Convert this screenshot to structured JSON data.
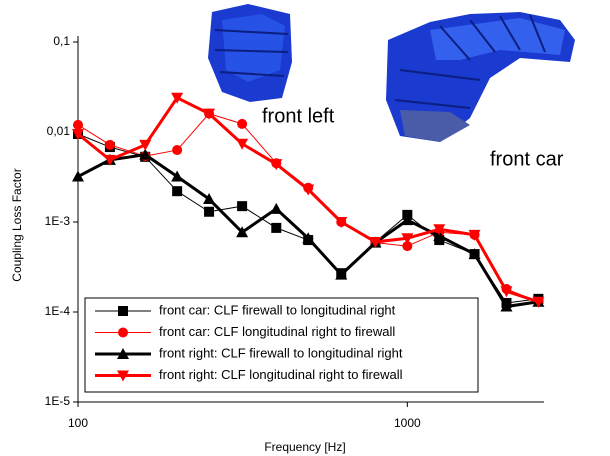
{
  "chart_data": {
    "type": "line",
    "xlabel": "Frequency [Hz]",
    "ylabel": "Coupling Loss Factor",
    "xlog": true,
    "ylog": true,
    "x": [
      100,
      125,
      160,
      200,
      250,
      315,
      400,
      500,
      630,
      800,
      1000,
      1250,
      1600,
      2000,
      2500
    ],
    "xlim": [
      100,
      2600
    ],
    "xticks": [
      100,
      1000
    ],
    "ylim": [
      1e-05,
      0.1
    ],
    "yticks": [
      {
        "value": 0.1,
        "label": "0,1"
      },
      {
        "value": 0.01,
        "label": "0,01"
      },
      {
        "value": 0.001,
        "label": "1E-3"
      },
      {
        "value": 0.0001,
        "label": "1E-4"
      },
      {
        "value": 1e-05,
        "label": "1E-5"
      }
    ],
    "legend": "bottom-left",
    "annotations": [
      "front left",
      "front car"
    ],
    "series": [
      {
        "name": "front car: CLF firewall to longitudinal right",
        "color": "#000000",
        "marker": "square",
        "linewidth": 1,
        "values": [
          0.0095,
          0.0068,
          0.0053,
          0.0022,
          0.0013,
          0.0015,
          0.00086,
          0.00063,
          0.00027,
          0.0006,
          0.0012,
          0.00063,
          0.00044,
          0.000126,
          0.00014
        ]
      },
      {
        "name": "front car: CLF longitudinal right to firewall",
        "color": "#ff0000",
        "marker": "circle",
        "linewidth": 1,
        "values": [
          0.012,
          0.0072,
          0.0054,
          0.0063,
          0.016,
          0.0123,
          0.0045,
          0.0024,
          0.001,
          0.00059,
          0.00054,
          0.00077,
          0.00072,
          0.00018,
          0.00013
        ]
      },
      {
        "name": "front right: CLF firewall to longitudinal right",
        "color": "#000000",
        "marker": "triangle-up",
        "linewidth": 3,
        "values": [
          0.0032,
          0.0049,
          0.0056,
          0.0032,
          0.0018,
          0.00077,
          0.0014,
          0.00066,
          0.00026,
          0.00059,
          0.00105,
          0.0007,
          0.00044,
          0.000115,
          0.00013
        ]
      },
      {
        "name": "front right: CLF longitudinal right to firewall",
        "color": "#ff0000",
        "marker": "triangle-down",
        "linewidth": 3,
        "values": [
          0.0095,
          0.0049,
          0.0072,
          0.024,
          0.016,
          0.0074,
          0.0044,
          0.0023,
          0.001,
          0.0006,
          0.00066,
          0.00083,
          0.00072,
          0.00017,
          0.00013
        ]
      }
    ]
  }
}
